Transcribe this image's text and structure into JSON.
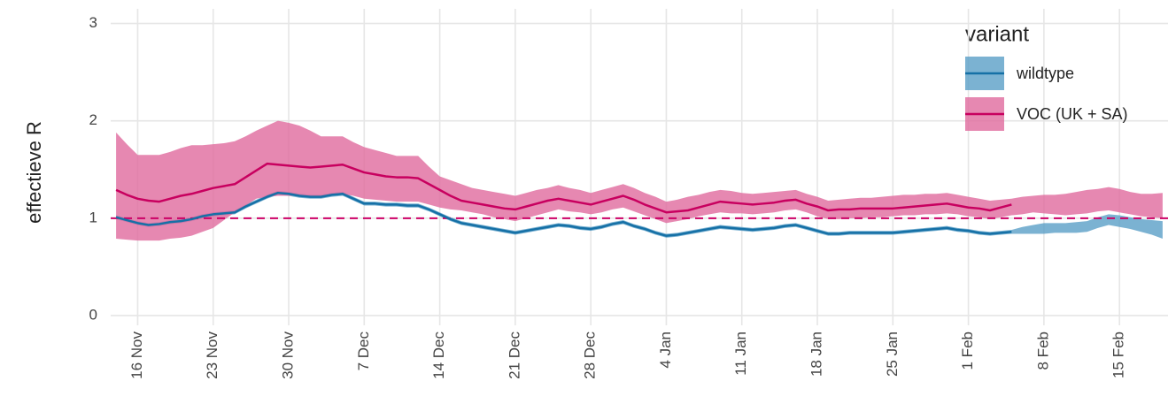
{
  "chart_data": {
    "type": "ribbon-line",
    "y_label": "effectieve R",
    "legend_title": "variant",
    "legend_position": "top-right",
    "grid": true,
    "ylim": [
      -0.1,
      3.15
    ],
    "yticks": [
      0,
      1,
      2,
      3
    ],
    "hline": {
      "value": 1,
      "color": "#cc0066",
      "dashed": true
    },
    "x": [
      "14 Nov",
      "15 Nov",
      "16 Nov",
      "17 Nov",
      "18 Nov",
      "19 Nov",
      "20 Nov",
      "21 Nov",
      "22 Nov",
      "23 Nov",
      "24 Nov",
      "25 Nov",
      "26 Nov",
      "27 Nov",
      "28 Nov",
      "29 Nov",
      "30 Nov",
      "1 Dec",
      "2 Dec",
      "3 Dec",
      "4 Dec",
      "5 Dec",
      "6 Dec",
      "7 Dec",
      "8 Dec",
      "9 Dec",
      "10 Dec",
      "11 Dec",
      "12 Dec",
      "13 Dec",
      "14 Dec",
      "15 Dec",
      "16 Dec",
      "17 Dec",
      "18 Dec",
      "19 Dec",
      "20 Dec",
      "21 Dec",
      "22 Dec",
      "23 Dec",
      "24 Dec",
      "25 Dec",
      "26 Dec",
      "27 Dec",
      "28 Dec",
      "29 Dec",
      "30 Dec",
      "31 Dec",
      "1 Jan",
      "2 Jan",
      "3 Jan",
      "4 Jan",
      "5 Jan",
      "6 Jan",
      "7 Jan",
      "8 Jan",
      "9 Jan",
      "10 Jan",
      "11 Jan",
      "12 Jan",
      "13 Jan",
      "14 Jan",
      "15 Jan",
      "16 Jan",
      "17 Jan",
      "18 Jan",
      "19 Jan",
      "20 Jan",
      "21 Jan",
      "22 Jan",
      "23 Jan",
      "24 Jan",
      "25 Jan",
      "26 Jan",
      "27 Jan",
      "28 Jan",
      "29 Jan",
      "30 Jan",
      "31 Jan",
      "1 Feb",
      "2 Feb",
      "3 Feb",
      "4 Feb",
      "5 Feb",
      "6 Feb",
      "7 Feb",
      "8 Feb",
      "9 Feb",
      "10 Feb",
      "11 Feb",
      "12 Feb",
      "13 Feb",
      "14 Feb",
      "15 Feb",
      "16 Feb",
      "17 Feb",
      "18 Feb",
      "19 Feb"
    ],
    "xticks": [
      "16 Nov",
      "23 Nov",
      "30 Nov",
      "7 Dec",
      "14 Dec",
      "21 Dec",
      "28 Dec",
      "4 Jan",
      "11 Jan",
      "18 Jan",
      "25 Jan",
      "1 Feb",
      "8 Feb",
      "15 Feb"
    ],
    "series": [
      {
        "name": "wildtype",
        "color": "#1570a6",
        "band_color": "#5a9fc7",
        "values": [
          1.01,
          0.98,
          0.95,
          0.93,
          0.94,
          0.96,
          0.97,
          0.99,
          1.02,
          1.04,
          1.05,
          1.06,
          1.12,
          1.17,
          1.22,
          1.26,
          1.25,
          1.23,
          1.22,
          1.22,
          1.24,
          1.25,
          1.2,
          1.15,
          1.15,
          1.14,
          1.14,
          1.13,
          1.13,
          1.09,
          1.04,
          0.99,
          0.95,
          0.93,
          0.91,
          0.89,
          0.87,
          0.85,
          0.87,
          0.89,
          0.91,
          0.93,
          0.92,
          0.9,
          0.89,
          0.91,
          0.94,
          0.96,
          0.92,
          0.89,
          0.85,
          0.82,
          0.83,
          0.85,
          0.87,
          0.89,
          0.91,
          0.9,
          0.89,
          0.88,
          0.89,
          0.9,
          0.92,
          0.93,
          0.9,
          0.87,
          0.84,
          0.84,
          0.85,
          0.85,
          0.85,
          0.85,
          0.85,
          0.86,
          0.87,
          0.88,
          0.89,
          0.9,
          0.88,
          0.87,
          0.85,
          0.84,
          0.85,
          0.86,
          null,
          null,
          null,
          null,
          null,
          null,
          null,
          null,
          null,
          null,
          null,
          null,
          null,
          null
        ],
        "upper": [
          1.03,
          1.0,
          0.97,
          0.95,
          0.96,
          0.98,
          0.99,
          1.01,
          1.04,
          1.06,
          1.07,
          1.08,
          1.14,
          1.19,
          1.24,
          1.28,
          1.27,
          1.25,
          1.24,
          1.24,
          1.26,
          1.27,
          1.22,
          1.17,
          1.17,
          1.16,
          1.16,
          1.15,
          1.15,
          1.11,
          1.06,
          1.01,
          0.97,
          0.95,
          0.93,
          0.91,
          0.89,
          0.87,
          0.89,
          0.91,
          0.93,
          0.95,
          0.94,
          0.92,
          0.91,
          0.93,
          0.96,
          0.98,
          0.94,
          0.91,
          0.87,
          0.84,
          0.85,
          0.87,
          0.89,
          0.91,
          0.93,
          0.92,
          0.91,
          0.9,
          0.91,
          0.92,
          0.94,
          0.95,
          0.92,
          0.89,
          0.86,
          0.86,
          0.87,
          0.87,
          0.87,
          0.87,
          0.87,
          0.88,
          0.89,
          0.9,
          0.91,
          0.92,
          0.9,
          0.89,
          0.87,
          0.86,
          0.87,
          0.88,
          0.91,
          0.93,
          0.95,
          0.95,
          0.95,
          0.96,
          0.97,
          1.01,
          1.04,
          1.03,
          1.01,
          0.99,
          0.98,
          0.97
        ],
        "lower": [
          0.99,
          0.96,
          0.93,
          0.91,
          0.92,
          0.94,
          0.95,
          0.97,
          1.0,
          1.02,
          1.03,
          1.04,
          1.1,
          1.15,
          1.2,
          1.24,
          1.23,
          1.21,
          1.2,
          1.2,
          1.22,
          1.23,
          1.18,
          1.13,
          1.13,
          1.12,
          1.12,
          1.11,
          1.11,
          1.07,
          1.02,
          0.97,
          0.93,
          0.91,
          0.89,
          0.87,
          0.85,
          0.83,
          0.85,
          0.87,
          0.89,
          0.91,
          0.9,
          0.88,
          0.87,
          0.89,
          0.92,
          0.94,
          0.9,
          0.87,
          0.83,
          0.8,
          0.81,
          0.83,
          0.85,
          0.87,
          0.89,
          0.88,
          0.87,
          0.86,
          0.87,
          0.88,
          0.9,
          0.91,
          0.88,
          0.85,
          0.82,
          0.82,
          0.83,
          0.83,
          0.83,
          0.83,
          0.83,
          0.84,
          0.85,
          0.86,
          0.87,
          0.88,
          0.86,
          0.85,
          0.83,
          0.82,
          0.83,
          0.84,
          0.84,
          0.84,
          0.84,
          0.85,
          0.85,
          0.85,
          0.86,
          0.9,
          0.93,
          0.91,
          0.89,
          0.86,
          0.83,
          0.79
        ]
      },
      {
        "name": "VOC (UK + SA)",
        "color": "#c8005f",
        "band_color": "#e06a9e",
        "values": [
          1.29,
          1.24,
          1.2,
          1.18,
          1.17,
          1.2,
          1.23,
          1.25,
          1.28,
          1.31,
          1.33,
          1.35,
          1.42,
          1.49,
          1.56,
          1.55,
          1.54,
          1.53,
          1.52,
          1.53,
          1.54,
          1.55,
          1.51,
          1.47,
          1.45,
          1.43,
          1.42,
          1.42,
          1.41,
          1.35,
          1.29,
          1.23,
          1.18,
          1.16,
          1.14,
          1.12,
          1.1,
          1.09,
          1.12,
          1.15,
          1.18,
          1.2,
          1.18,
          1.16,
          1.14,
          1.17,
          1.2,
          1.23,
          1.19,
          1.14,
          1.1,
          1.06,
          1.07,
          1.08,
          1.11,
          1.14,
          1.17,
          1.16,
          1.15,
          1.14,
          1.15,
          1.16,
          1.18,
          1.19,
          1.15,
          1.12,
          1.08,
          1.09,
          1.09,
          1.1,
          1.1,
          1.1,
          1.1,
          1.11,
          1.12,
          1.13,
          1.14,
          1.15,
          1.13,
          1.11,
          1.1,
          1.08,
          1.11,
          1.14,
          null,
          null,
          null,
          null,
          null,
          null,
          null,
          null,
          null,
          null,
          null,
          null,
          null,
          null
        ],
        "upper": [
          1.88,
          1.76,
          1.65,
          1.65,
          1.65,
          1.68,
          1.72,
          1.75,
          1.75,
          1.76,
          1.77,
          1.79,
          1.84,
          1.9,
          1.95,
          2.0,
          1.98,
          1.95,
          1.9,
          1.84,
          1.84,
          1.84,
          1.78,
          1.73,
          1.7,
          1.67,
          1.64,
          1.64,
          1.64,
          1.53,
          1.43,
          1.39,
          1.35,
          1.31,
          1.29,
          1.27,
          1.25,
          1.23,
          1.26,
          1.29,
          1.31,
          1.34,
          1.31,
          1.29,
          1.26,
          1.29,
          1.32,
          1.35,
          1.31,
          1.26,
          1.22,
          1.17,
          1.19,
          1.22,
          1.24,
          1.27,
          1.29,
          1.28,
          1.26,
          1.25,
          1.26,
          1.27,
          1.28,
          1.29,
          1.25,
          1.22,
          1.18,
          1.19,
          1.2,
          1.21,
          1.21,
          1.22,
          1.23,
          1.24,
          1.24,
          1.25,
          1.25,
          1.26,
          1.24,
          1.22,
          1.2,
          1.18,
          1.19,
          1.2,
          1.22,
          1.23,
          1.24,
          1.24,
          1.25,
          1.27,
          1.29,
          1.3,
          1.32,
          1.3,
          1.27,
          1.25,
          1.25,
          1.26
        ],
        "lower": [
          0.79,
          0.78,
          0.77,
          0.77,
          0.77,
          0.79,
          0.8,
          0.82,
          0.86,
          0.9,
          0.98,
          1.06,
          1.13,
          1.2,
          1.22,
          1.23,
          1.23,
          1.23,
          1.23,
          1.23,
          1.24,
          1.25,
          1.23,
          1.2,
          1.19,
          1.18,
          1.17,
          1.17,
          1.17,
          1.14,
          1.11,
          1.09,
          1.08,
          1.06,
          1.04,
          1.01,
          0.99,
          0.97,
          1.0,
          1.03,
          1.06,
          1.09,
          1.07,
          1.06,
          1.04,
          1.06,
          1.09,
          1.11,
          1.07,
          1.03,
          0.99,
          0.95,
          0.97,
          0.99,
          1.02,
          1.04,
          1.06,
          1.05,
          1.05,
          1.04,
          1.05,
          1.06,
          1.08,
          1.09,
          1.06,
          1.02,
          0.99,
          0.99,
          1.0,
          1.0,
          1.01,
          1.01,
          1.02,
          1.03,
          1.03,
          1.04,
          1.04,
          1.05,
          1.04,
          1.02,
          1.01,
          0.99,
          1.01,
          1.03,
          1.04,
          1.06,
          1.05,
          1.04,
          1.03,
          1.04,
          1.05,
          1.07,
          1.08,
          1.06,
          1.04,
          1.02,
          1.01,
          1.0
        ]
      }
    ]
  }
}
